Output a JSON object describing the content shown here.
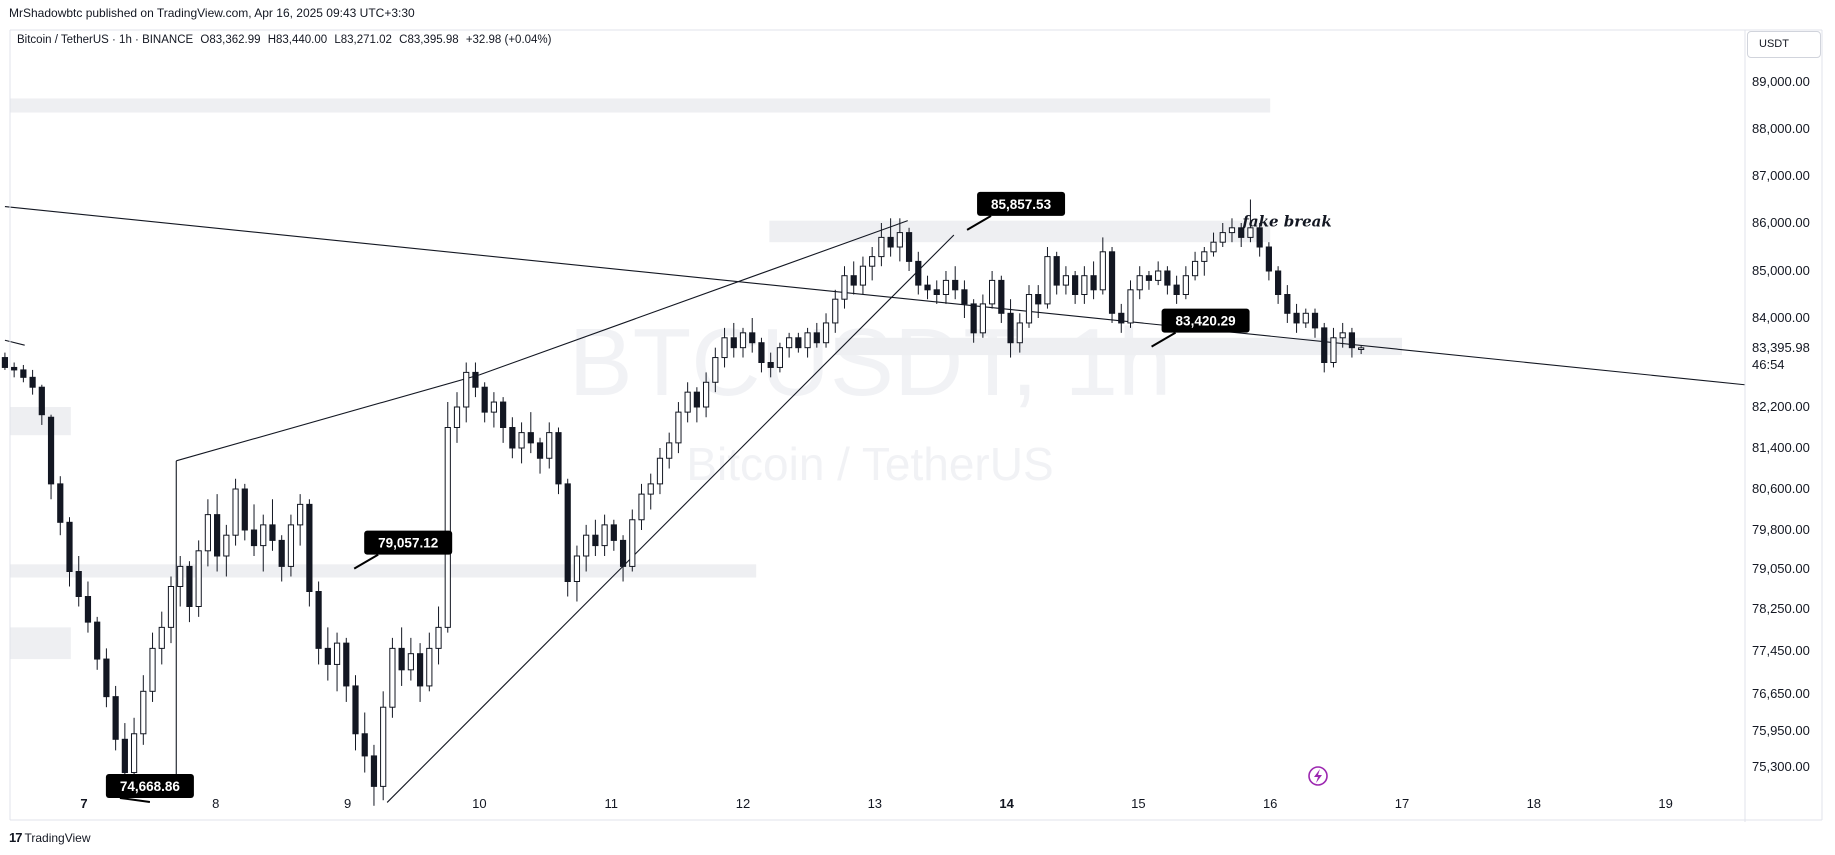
{
  "header": {
    "published": "MrShadowbtc published on TradingView.com, Apr 16, 2025 09:43 UTC+3:30",
    "symbol": "Bitcoin / TetherUS · 1h · BINANCE",
    "open": "O83,362.99",
    "high": "H83,440.00",
    "low": "L83,271.02",
    "close": "C83,395.98",
    "change": "+32.98 (+0.04%)",
    "currency_button": "USDT"
  },
  "watermark": {
    "symbol": "BTCUSDT, 1h",
    "name": "Bitcoin / TetherUS"
  },
  "footer": {
    "brand": "TradingView",
    "logo_mark": "17"
  },
  "colors": {
    "candle": "#131722",
    "zone": "#eeeff2",
    "callout_bg": "#000000",
    "grid": "#ffffff",
    "border": "#e0e3eb",
    "watermark": "#f1f2f5",
    "lightning": "#9c27b0"
  },
  "chart_data": {
    "type": "candlestick",
    "title": "Bitcoin / TetherUS · 1h · BINANCE",
    "xlabel": "",
    "ylabel": "",
    "y_axis_labels": [
      "89,000.00",
      "88,000.00",
      "87,000.00",
      "86,000.00",
      "85,000.00",
      "84,000.00",
      "83,395.98",
      "82,200.00",
      "81,400.00",
      "80,600.00",
      "79,800.00",
      "79,050.00",
      "78,250.00",
      "77,450.00",
      "76,650.00",
      "75,950.00",
      "75,300.00"
    ],
    "y_axis_values": [
      89000,
      88000,
      87000,
      86000,
      85000,
      84000,
      83395.98,
      82200,
      81400,
      80600,
      79800,
      79050,
      78250,
      77450,
      76650,
      75950,
      75300
    ],
    "countdown": "46:54",
    "x_axis_labels": [
      "7",
      "8",
      "9",
      "10",
      "11",
      "12",
      "13",
      "14",
      "15",
      "16",
      "17",
      "18",
      "19"
    ],
    "x_axis_bold": [
      "7",
      "14"
    ],
    "last_price": 83395.98,
    "price_callouts": [
      {
        "label": "85,857.53",
        "price": 85857.53,
        "day": 13.7
      },
      {
        "label": "83,420.29",
        "price": 83420.29,
        "day": 15.1
      },
      {
        "label": "79,057.12",
        "price": 79057.12,
        "day": 9.05
      },
      {
        "label": "74,668.86",
        "price": 74668.86,
        "day": 7.5
      }
    ],
    "annotations": [
      {
        "text": "fake break",
        "day": 15.85,
        "price": 86100
      }
    ],
    "zones": [
      {
        "day_from": 6.4,
        "day_to": 16.0,
        "price_top": 88650,
        "price_bottom": 88350
      },
      {
        "day_from": 12.2,
        "day_to": 16.0,
        "price_top": 86050,
        "price_bottom": 85600
      },
      {
        "day_from": 12.7,
        "day_to": 17.0,
        "price_top": 83600,
        "price_bottom": 83250
      },
      {
        "day_from": 6.4,
        "day_to": 6.9,
        "price_top": 82200,
        "price_bottom": 81650
      },
      {
        "day_from": 6.4,
        "day_to": 12.1,
        "price_top": 79140,
        "price_bottom": 78880
      },
      {
        "day_from": 6.4,
        "day_to": 6.9,
        "price_top": 77900,
        "price_bottom": 77300
      }
    ],
    "trendlines": [
      {
        "from": [
          6.4,
          86350
        ],
        "to": [
          19.6,
          82650
        ]
      },
      {
        "from": [
          6.4,
          83550
        ],
        "to": [
          6.55,
          83450
        ]
      },
      {
        "from": [
          7.7,
          75050
        ],
        "to": [
          7.7,
          81150
        ]
      },
      {
        "from": [
          7.7,
          81150
        ],
        "to": [
          10.0,
          82850
        ]
      },
      {
        "from": [
          10.0,
          82850
        ],
        "to": [
          13.25,
          86050
        ]
      },
      {
        "from": [
          9.3,
          74660
        ],
        "to": [
          13.6,
          85750
        ]
      }
    ],
    "candles": [
      [
        6.4,
        83200,
        83300,
        82950,
        83000
      ],
      [
        6.47,
        83000,
        83100,
        82800,
        82950
      ],
      [
        6.54,
        82950,
        83050,
        82700,
        82800
      ],
      [
        6.61,
        82800,
        82950,
        82450,
        82600
      ],
      [
        6.68,
        82600,
        82650,
        81850,
        82050
      ],
      [
        6.75,
        82000,
        82050,
        80400,
        80700
      ],
      [
        6.82,
        80700,
        80850,
        79700,
        79950
      ],
      [
        6.89,
        79950,
        80050,
        78700,
        79000
      ],
      [
        6.96,
        79000,
        79300,
        78300,
        78500
      ],
      [
        7.03,
        78500,
        78800,
        77800,
        78000
      ],
      [
        7.1,
        78000,
        78100,
        77100,
        77300
      ],
      [
        7.17,
        77300,
        77500,
        76400,
        76600
      ],
      [
        7.24,
        76600,
        76800,
        75600,
        75800
      ],
      [
        7.31,
        75800,
        76100,
        75000,
        75200
      ],
      [
        7.38,
        75200,
        76200,
        74900,
        75900
      ],
      [
        7.45,
        75900,
        77000,
        75700,
        76700
      ],
      [
        7.52,
        76700,
        77800,
        76500,
        77500
      ],
      [
        7.59,
        77500,
        78200,
        77200,
        77900
      ],
      [
        7.66,
        77900,
        78900,
        77600,
        78700
      ],
      [
        7.73,
        78700,
        79300,
        78300,
        79100
      ],
      [
        7.8,
        79100,
        79200,
        78000,
        78300
      ],
      [
        7.87,
        78300,
        79600,
        78100,
        79400
      ],
      [
        7.94,
        79400,
        80400,
        79100,
        80100
      ],
      [
        8.01,
        80100,
        80500,
        79000,
        79300
      ],
      [
        8.08,
        79300,
        79900,
        78900,
        79700
      ],
      [
        8.15,
        79700,
        80800,
        79500,
        80600
      ],
      [
        8.22,
        80600,
        80700,
        79600,
        79800
      ],
      [
        8.29,
        79800,
        80300,
        79300,
        79500
      ],
      [
        8.36,
        79500,
        80100,
        79000,
        79900
      ],
      [
        8.43,
        79900,
        80400,
        79400,
        79600
      ],
      [
        8.5,
        79600,
        79700,
        78800,
        79100
      ],
      [
        8.57,
        79100,
        80100,
        78900,
        79900
      ],
      [
        8.64,
        79900,
        80500,
        79500,
        80300
      ],
      [
        8.71,
        80300,
        80400,
        78300,
        78600
      ],
      [
        8.78,
        78600,
        78800,
        77200,
        77500
      ],
      [
        8.85,
        77500,
        77900,
        76900,
        77200
      ],
      [
        8.92,
        77200,
        77800,
        76700,
        77600
      ],
      [
        8.99,
        77600,
        77700,
        76500,
        76800
      ],
      [
        9.06,
        76800,
        77000,
        75600,
        75900
      ],
      [
        9.13,
        75900,
        76300,
        75200,
        75500
      ],
      [
        9.2,
        75500,
        75700,
        74600,
        74950
      ],
      [
        9.27,
        74950,
        76700,
        74700,
        76400
      ],
      [
        9.34,
        76400,
        77700,
        76200,
        77500
      ],
      [
        9.41,
        77500,
        77900,
        76800,
        77100
      ],
      [
        9.48,
        77100,
        77700,
        76900,
        77400
      ],
      [
        9.55,
        77400,
        77600,
        76500,
        76800
      ],
      [
        9.62,
        76800,
        77800,
        76700,
        77500
      ],
      [
        9.69,
        77500,
        78300,
        77200,
        77900
      ],
      [
        9.76,
        77900,
        82300,
        77800,
        81800
      ],
      [
        9.83,
        81800,
        82500,
        81500,
        82200
      ],
      [
        9.9,
        82200,
        83100,
        81900,
        82900
      ],
      [
        9.97,
        82900,
        83100,
        82400,
        82600
      ],
      [
        10.04,
        82600,
        82700,
        81900,
        82100
      ],
      [
        10.11,
        82100,
        82500,
        81800,
        82300
      ],
      [
        10.18,
        82300,
        82400,
        81500,
        81800
      ],
      [
        10.25,
        81800,
        82000,
        81200,
        81400
      ],
      [
        10.32,
        81400,
        81900,
        81100,
        81700
      ],
      [
        10.39,
        81700,
        82100,
        81300,
        81500
      ],
      [
        10.46,
        81500,
        81600,
        80900,
        81200
      ],
      [
        10.53,
        81200,
        81900,
        81000,
        81700
      ],
      [
        10.6,
        81700,
        81800,
        80500,
        80700
      ],
      [
        10.67,
        80700,
        80800,
        78500,
        78800
      ],
      [
        10.74,
        78800,
        79500,
        78400,
        79300
      ],
      [
        10.81,
        79300,
        79900,
        79000,
        79700
      ],
      [
        10.88,
        79700,
        80000,
        79300,
        79500
      ],
      [
        10.95,
        79500,
        80100,
        79300,
        79900
      ],
      [
        11.02,
        79900,
        80000,
        79400,
        79600
      ],
      [
        11.09,
        79600,
        79700,
        78800,
        79100
      ],
      [
        11.16,
        79100,
        80200,
        79000,
        80000
      ],
      [
        11.23,
        80000,
        80700,
        79800,
        80500
      ],
      [
        11.3,
        80500,
        80900,
        80200,
        80700
      ],
      [
        11.37,
        80700,
        81400,
        80500,
        81200
      ],
      [
        11.44,
        81200,
        81700,
        81000,
        81500
      ],
      [
        11.51,
        81500,
        82300,
        81300,
        82100
      ],
      [
        11.58,
        82100,
        82700,
        81900,
        82500
      ],
      [
        11.65,
        82500,
        82600,
        81900,
        82200
      ],
      [
        11.72,
        82200,
        82900,
        82000,
        82700
      ],
      [
        11.79,
        82700,
        83400,
        82500,
        83200
      ],
      [
        11.86,
        83200,
        83800,
        83000,
        83600
      ],
      [
        11.93,
        83600,
        83900,
        83200,
        83400
      ],
      [
        12.0,
        83400,
        83800,
        83200,
        83700
      ],
      [
        12.07,
        83700,
        84000,
        83300,
        83500
      ],
      [
        12.14,
        83500,
        83600,
        82900,
        83100
      ],
      [
        12.21,
        83100,
        83300,
        82800,
        83000
      ],
      [
        12.28,
        83000,
        83500,
        82900,
        83400
      ],
      [
        12.35,
        83400,
        83700,
        83200,
        83600
      ],
      [
        12.42,
        83600,
        83700,
        83300,
        83400
      ],
      [
        12.49,
        83400,
        83800,
        83200,
        83700
      ],
      [
        12.56,
        83700,
        83900,
        83400,
        83500
      ],
      [
        12.63,
        83500,
        84100,
        83400,
        83900
      ],
      [
        12.7,
        83900,
        84600,
        83700,
        84400
      ],
      [
        12.77,
        84400,
        85100,
        84200,
        84900
      ],
      [
        12.84,
        84900,
        85200,
        84500,
        84700
      ],
      [
        12.91,
        84700,
        85300,
        84500,
        85100
      ],
      [
        12.98,
        85100,
        85500,
        84800,
        85300
      ],
      [
        13.05,
        85300,
        86000,
        85100,
        85700
      ],
      [
        13.12,
        85700,
        86100,
        85300,
        85500
      ],
      [
        13.19,
        85500,
        86100,
        85200,
        85800
      ],
      [
        13.26,
        85800,
        85900,
        85000,
        85200
      ],
      [
        13.33,
        85200,
        85400,
        84500,
        84700
      ],
      [
        13.4,
        84700,
        84900,
        84400,
        84600
      ],
      [
        13.47,
        84600,
        84800,
        84300,
        84500
      ],
      [
        13.54,
        84500,
        85000,
        84300,
        84800
      ],
      [
        13.61,
        84800,
        85100,
        84400,
        84600
      ],
      [
        13.68,
        84600,
        84800,
        84000,
        84300
      ],
      [
        13.75,
        84300,
        84400,
        83500,
        83700
      ],
      [
        13.82,
        83700,
        84500,
        83600,
        84300
      ],
      [
        13.89,
        84300,
        85000,
        84200,
        84800
      ],
      [
        13.96,
        84800,
        84900,
        83900,
        84100
      ],
      [
        14.03,
        84100,
        84400,
        83200,
        83500
      ],
      [
        14.1,
        83500,
        84100,
        83300,
        83900
      ],
      [
        14.17,
        83900,
        84700,
        83800,
        84500
      ],
      [
        14.24,
        84500,
        84700,
        84000,
        84300
      ],
      [
        14.31,
        84300,
        85500,
        84200,
        85300
      ],
      [
        14.38,
        85300,
        85400,
        84500,
        84700
      ],
      [
        14.45,
        84700,
        85100,
        84500,
        84900
      ],
      [
        14.52,
        84900,
        85000,
        84300,
        84500
      ],
      [
        14.59,
        84500,
        85100,
        84300,
        84900
      ],
      [
        14.66,
        84900,
        85200,
        84400,
        84600
      ],
      [
        14.73,
        84600,
        85700,
        84500,
        85400
      ],
      [
        14.8,
        85400,
        85500,
        83900,
        84100
      ],
      [
        14.87,
        84100,
        84300,
        83700,
        83900
      ],
      [
        14.94,
        83900,
        84800,
        83800,
        84600
      ],
      [
        15.01,
        84600,
        85100,
        84400,
        84900
      ],
      [
        15.08,
        84900,
        85000,
        84600,
        84800
      ],
      [
        15.15,
        84800,
        85200,
        84700,
        85000
      ],
      [
        15.22,
        85000,
        85100,
        84500,
        84700
      ],
      [
        15.29,
        84700,
        84900,
        84300,
        84500
      ],
      [
        15.36,
        84500,
        85100,
        84400,
        84900
      ],
      [
        15.43,
        84900,
        85400,
        84800,
        85200
      ],
      [
        15.5,
        85200,
        85500,
        84900,
        85400
      ],
      [
        15.57,
        85400,
        85800,
        85300,
        85600
      ],
      [
        15.64,
        85600,
        86000,
        85500,
        85800
      ],
      [
        15.71,
        85800,
        86100,
        85600,
        85900
      ],
      [
        15.78,
        85900,
        86000,
        85500,
        85700
      ],
      [
        15.85,
        85700,
        86500,
        85600,
        85900
      ],
      [
        15.92,
        85900,
        86000,
        85300,
        85500
      ],
      [
        15.99,
        85500,
        85600,
        84800,
        85000
      ],
      [
        16.06,
        85000,
        85100,
        84300,
        84500
      ],
      [
        16.13,
        84500,
        84700,
        83900,
        84100
      ],
      [
        16.2,
        84100,
        84300,
        83700,
        83900
      ],
      [
        16.27,
        83900,
        84200,
        83800,
        84100
      ],
      [
        16.34,
        84100,
        84200,
        83600,
        83800
      ],
      [
        16.41,
        83800,
        83900,
        82900,
        83100
      ],
      [
        16.48,
        83100,
        83800,
        83000,
        83600
      ],
      [
        16.55,
        83600,
        83900,
        83400,
        83700
      ],
      [
        16.62,
        83700,
        83800,
        83200,
        83400
      ],
      [
        16.69,
        83363,
        83440,
        83271,
        83396
      ]
    ]
  }
}
